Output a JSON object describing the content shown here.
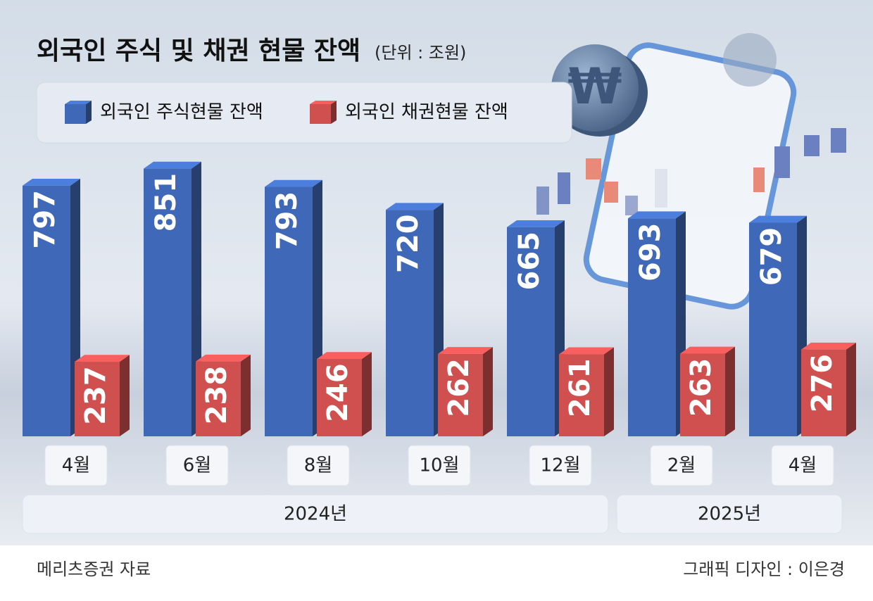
{
  "chart_data": {
    "type": "bar3d",
    "title": "외국인 주식 및 채권 현물 잔액",
    "subtitle": "(단위 : 조원)",
    "categories": [
      "4월",
      "6월",
      "8월",
      "10월",
      "12월",
      "2월",
      "4월"
    ],
    "year_groups": [
      "2024년",
      "2025년"
    ],
    "series": [
      {
        "name": "외국인 주식현물 잔액",
        "color": "#3f69b8",
        "values": [
          797,
          851,
          793,
          720,
          665,
          693,
          679
        ]
      },
      {
        "name": "외국인 채권현물 잔액",
        "color": "#d04f4f",
        "values": [
          237,
          238,
          246,
          262,
          261,
          263,
          276
        ]
      }
    ],
    "source": "메리츠증권 자료",
    "credit": "그래픽 디자인 : 이은경"
  }
}
